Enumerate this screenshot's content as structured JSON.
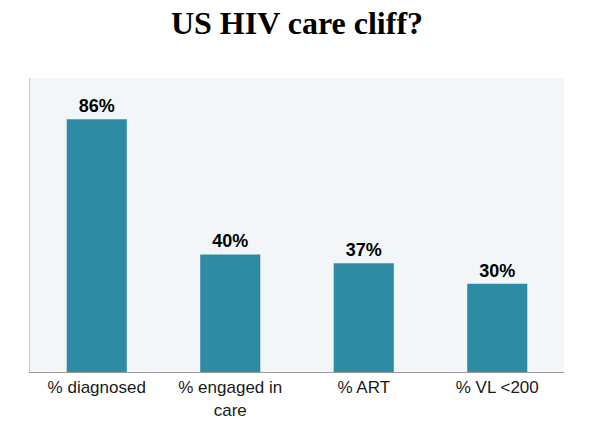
{
  "chart_data": {
    "type": "bar",
    "title": "US HIV care cliff?",
    "categories": [
      "% diagnosed",
      "% engaged in care",
      "% ART",
      "% VL <200"
    ],
    "values": [
      86,
      40,
      37,
      30
    ],
    "value_labels": [
      "86%",
      "40%",
      "37%",
      "30%"
    ],
    "color": "#2e8ba4",
    "ylim": [
      0,
      100
    ],
    "data_labels": true,
    "tick_labels": "x",
    "grid": false
  }
}
